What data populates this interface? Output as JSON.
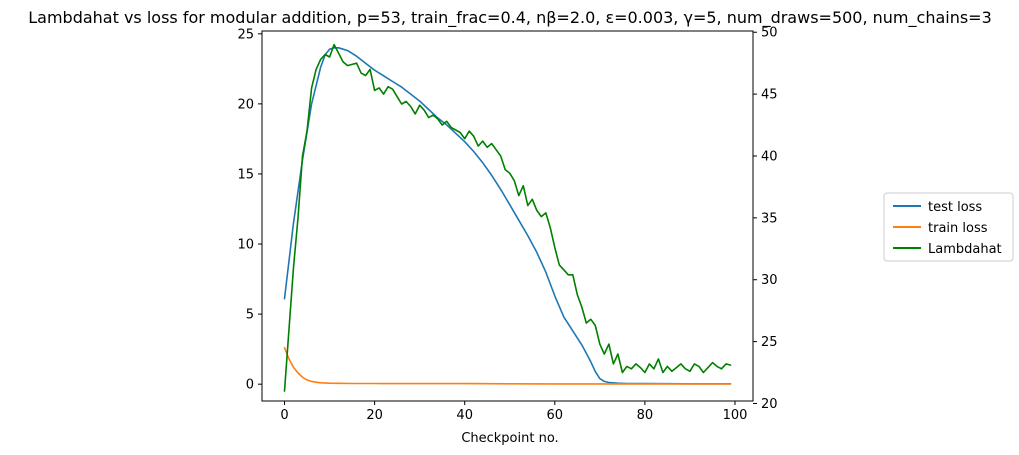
{
  "chart_data": {
    "type": "line",
    "title": "Lambdahat vs loss for modular addition, p=53, train_frac=0.4, nβ=2.0, ε=0.003, γ=5, num_draws=500, num_chains=3",
    "xlabel": "Checkpoint no.",
    "ylabel_left": "",
    "ylabel_right": "",
    "xlim": [
      -5,
      104
    ],
    "ylim_left": [
      -1.2,
      25.2
    ],
    "ylim_right": [
      20.2,
      50.1
    ],
    "x_ticks": [
      "0",
      "20",
      "40",
      "60",
      "80",
      "100"
    ],
    "y_ticks_left": [
      "0",
      "5",
      "10",
      "15",
      "20",
      "25"
    ],
    "y_ticks_right": [
      "20",
      "25",
      "30",
      "35",
      "40",
      "45",
      "50"
    ],
    "grid": false,
    "legend_position": "outside-right",
    "series": [
      {
        "name": "test loss",
        "axis": "left",
        "color": "#1f77b4",
        "x": [
          0,
          2,
          4,
          6,
          8,
          9,
          10,
          11,
          12,
          13,
          14,
          16,
          18,
          20,
          22,
          24,
          26,
          28,
          30,
          32,
          34,
          36,
          38,
          40,
          42,
          44,
          46,
          48,
          50,
          52,
          54,
          56,
          58,
          60,
          62,
          64,
          66,
          68,
          69,
          70,
          71,
          72,
          74,
          76,
          80,
          90,
          99
        ],
        "y": [
          6.1,
          11.5,
          16.0,
          20.0,
          22.6,
          23.5,
          23.9,
          24.0,
          24.0,
          23.9,
          23.8,
          23.4,
          22.9,
          22.4,
          22.0,
          21.6,
          21.2,
          20.7,
          20.2,
          19.6,
          19.0,
          18.5,
          17.9,
          17.3,
          16.6,
          15.8,
          14.9,
          13.9,
          12.8,
          11.7,
          10.6,
          9.4,
          8.0,
          6.3,
          4.8,
          3.8,
          2.8,
          1.6,
          0.9,
          0.4,
          0.2,
          0.12,
          0.07,
          0.05,
          0.04,
          0.03,
          0.03
        ]
      },
      {
        "name": "train loss",
        "axis": "left",
        "color": "#ff7f0e",
        "x": [
          0,
          1,
          2,
          3,
          4,
          5,
          6,
          7,
          8,
          10,
          12,
          15,
          20,
          30,
          40,
          50,
          60,
          70,
          80,
          90,
          99
        ],
        "y": [
          2.6,
          1.8,
          1.2,
          0.8,
          0.5,
          0.3,
          0.2,
          0.14,
          0.1,
          0.07,
          0.06,
          0.05,
          0.05,
          0.04,
          0.04,
          0.03,
          0.02,
          0.02,
          0.02,
          0.02,
          0.02
        ]
      },
      {
        "name": "Lambdahat",
        "axis": "right",
        "color": "#008000",
        "x": [
          0,
          1,
          2,
          3,
          4,
          5,
          6,
          7,
          8,
          9,
          10,
          11,
          12,
          13,
          14,
          15,
          16,
          17,
          18,
          19,
          20,
          21,
          22,
          23,
          24,
          25,
          26,
          27,
          28,
          29,
          30,
          31,
          32,
          33,
          34,
          35,
          36,
          37,
          38,
          39,
          40,
          41,
          42,
          43,
          44,
          45,
          46,
          47,
          48,
          49,
          50,
          51,
          52,
          53,
          54,
          55,
          56,
          57,
          58,
          59,
          60,
          61,
          62,
          63,
          64,
          65,
          66,
          67,
          68,
          69,
          70,
          71,
          72,
          73,
          74,
          75,
          76,
          77,
          78,
          79,
          80,
          81,
          82,
          83,
          84,
          85,
          86,
          87,
          88,
          89,
          90,
          91,
          92,
          93,
          94,
          95,
          96,
          97,
          98,
          99
        ],
        "y": [
          21.0,
          26.0,
          31.0,
          35.0,
          40.0,
          42.0,
          45.5,
          47.0,
          47.8,
          48.2,
          48.0,
          49.0,
          48.3,
          47.6,
          47.3,
          47.4,
          47.5,
          46.7,
          46.5,
          47.0,
          45.3,
          45.5,
          45.0,
          45.6,
          45.4,
          44.8,
          44.2,
          44.4,
          44.0,
          43.4,
          44.1,
          43.7,
          43.1,
          43.3,
          43.0,
          42.5,
          42.8,
          42.3,
          42.1,
          41.9,
          41.4,
          42.0,
          41.6,
          40.8,
          41.2,
          40.7,
          41.0,
          40.5,
          40.0,
          38.9,
          38.6,
          38.0,
          36.8,
          37.6,
          36.0,
          36.5,
          35.6,
          35.1,
          35.4,
          34.2,
          32.6,
          31.2,
          30.8,
          30.4,
          30.4,
          28.8,
          27.8,
          26.5,
          26.8,
          26.3,
          24.8,
          24.0,
          24.8,
          23.2,
          24.0,
          22.5,
          23.0,
          22.8,
          23.2,
          22.9,
          22.5,
          23.2,
          22.8,
          23.6,
          22.5,
          23.0,
          22.6,
          22.9,
          23.2,
          22.8,
          22.6,
          23.2,
          23.0,
          22.5,
          22.9,
          23.3,
          23.0,
          22.8,
          23.2,
          23.1
        ]
      }
    ]
  }
}
